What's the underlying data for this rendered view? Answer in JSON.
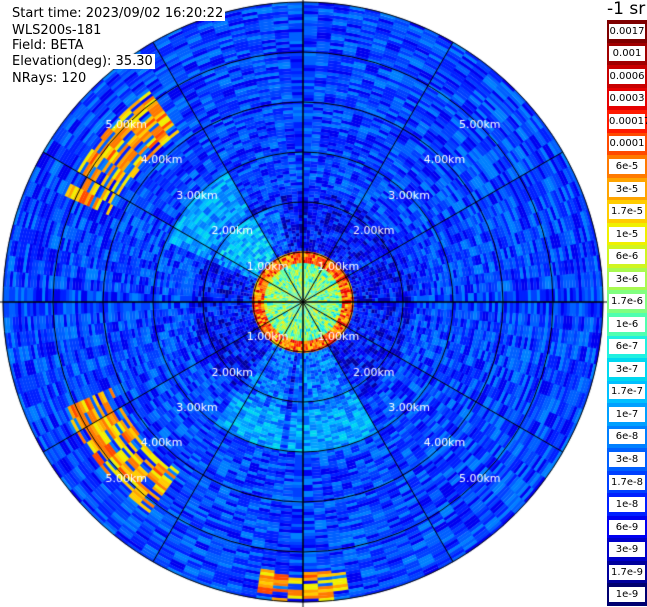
{
  "header": {
    "start_time": "Start time: 2023/09/02 16:20:22",
    "instrument": "WLS200s-181",
    "field": "Field: BETA",
    "elevation": "Elevation(deg): 35.30",
    "nrays": "NRays: 120"
  },
  "colorbar": {
    "units": "-1 sr",
    "labels": [
      "0.0017",
      "0.001",
      "0.0006",
      "0.0003",
      "0.00017",
      "0.0001",
      "6e-5",
      "3e-5",
      "1.7e-5",
      "1e-5",
      "6e-6",
      "3e-6",
      "1.7e-6",
      "1e-6",
      "6e-7",
      "3e-7",
      "1.7e-7",
      "1e-7",
      "6e-8",
      "3e-8",
      "1.7e-8",
      "1e-8",
      "6e-9",
      "3e-9",
      "1.7e-9",
      "1e-9"
    ],
    "colors": [
      "#7f0000",
      "#a00000",
      "#c80000",
      "#e60000",
      "#ff1a00",
      "#ff4a00",
      "#ff7a00",
      "#ffa400",
      "#ffcc00",
      "#f0f000",
      "#d0f520",
      "#a8fa50",
      "#80ff80",
      "#50ffb0",
      "#20f0e0",
      "#00d8f0",
      "#00c0ff",
      "#00a0ff",
      "#0080ff",
      "#0060ff",
      "#0040ff",
      "#0020ff",
      "#0000f0",
      "#0000c8",
      "#00009c",
      "#000070"
    ]
  },
  "chart_data": {
    "type": "heatmap",
    "projection": "polar PPI",
    "field": "BETA",
    "scale": "log",
    "range_unit": "km",
    "max_range_km": 6.0,
    "range_rings_km": [
      1.0,
      2.0,
      3.0,
      4.0,
      5.0
    ],
    "range_ring_labels": [
      "1.00km",
      "2.00km",
      "3.00km",
      "4.00km",
      "5.00km"
    ],
    "spoke_angles_deg": [
      0,
      30,
      60,
      90,
      120,
      150,
      180,
      210,
      240,
      270,
      300,
      330
    ],
    "ring_label_quadrant_angles_deg": [
      45,
      135,
      225,
      315
    ],
    "background_beta": "1.7e-8",
    "features": [
      {
        "description": "near-field aerosol ring",
        "range_km": [
          0.8,
          1.05
        ],
        "beta": "1e-4 to 6e-5"
      },
      {
        "description": "NW high-beta arc",
        "range_km": [
          4.2,
          5.2
        ],
        "azimuth_deg": [
          295,
          325
        ],
        "beta": "1e-5 to 3e-5"
      },
      {
        "description": "SW high-beta arc",
        "range_km": [
          4.2,
          5.2
        ],
        "azimuth_deg": [
          215,
          245
        ],
        "beta": "1e-5 to 3e-5"
      },
      {
        "description": "S high-beta patch",
        "range_km": [
          5.4,
          6.0
        ],
        "azimuth_deg": [
          170,
          190
        ],
        "beta": "6e-6 to 3e-5"
      }
    ]
  }
}
